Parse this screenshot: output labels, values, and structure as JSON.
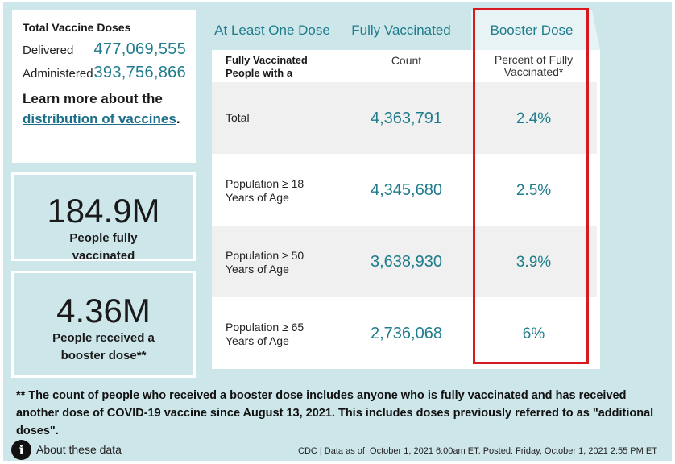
{
  "doses": {
    "title": "Total Vaccine Doses",
    "delivered_label": "Delivered",
    "delivered_value": "477,069,555",
    "administered_label": "Administered",
    "administered_value": "393,756,866",
    "learn_prefix": "Learn more about the",
    "learn_link": "distribution of vaccines",
    "learn_suffix": "."
  },
  "fully_vaccinated": {
    "value": "184.9M",
    "label": "People fully vaccinated"
  },
  "booster": {
    "value": "4.36M",
    "label": "People received a booster dose**"
  },
  "table": {
    "tabs": [
      "At Least One Dose",
      "Fully Vaccinated",
      "Booster Dose"
    ],
    "active_tab": "Booster Dose",
    "header": {
      "col1": "Fully Vaccinated People with a",
      "col2": "Count",
      "col3": "Percent of Fully Vaccinated*"
    },
    "rows": [
      {
        "label": "Total",
        "count": "4,363,791",
        "percent": "2.4%"
      },
      {
        "label": "Population ≥ 18 Years of Age",
        "count": "4,345,680",
        "percent": "2.5%"
      },
      {
        "label": "Population ≥ 50 Years of Age",
        "count": "3,638,930",
        "percent": "3.9%"
      },
      {
        "label": "Population ≥ 65 Years of Age",
        "count": "2,736,068",
        "percent": "6%"
      }
    ]
  },
  "footnote": "** The count of people who received a booster dose includes anyone who is fully vaccinated and has received another dose of COVID-19 vaccine since August 13, 2021. This includes doses previously referred to as \"additional doses\".",
  "about_label": "About these data",
  "source": "CDC | Data as of: October 1, 2021 6:00am ET. Posted: Friday, October 1, 2021 2:55 PM ET",
  "colors": {
    "accent": "#1f7c8c",
    "background": "#cde6ea",
    "highlight": "#d71920"
  }
}
